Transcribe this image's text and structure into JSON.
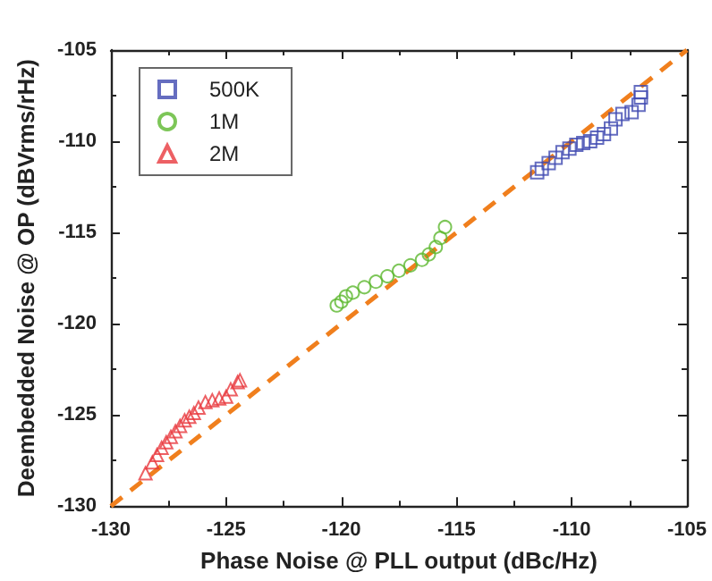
{
  "chart_data": {
    "type": "scatter",
    "xlabel": "Phase Noise @ PLL output (dBc/Hz)",
    "ylabel": "Deembedded Noise @ OP (dBVrms/rHz)",
    "xlim": [
      -130,
      -105
    ],
    "xticks": [
      -130,
      -125,
      -120,
      -115,
      -110,
      -105
    ],
    "ylim": [
      -130,
      -105
    ],
    "yticks": [
      -130,
      -125,
      -120,
      -115,
      -110,
      -105
    ],
    "grid": false,
    "legend": "top left",
    "series": [
      {
        "name": "500K",
        "color": "#3f48b0",
        "marker": "square",
        "x": [
          -111.5,
          -111.3,
          -111.0,
          -110.7,
          -110.4,
          -110.1,
          -109.8,
          -109.5,
          -109.2,
          -108.9,
          -108.6,
          -108.3,
          -108.1,
          -107.8,
          -107.4,
          -107.1,
          -107.0,
          -107.0
        ],
        "values": [
          -111.7,
          -111.5,
          -111.2,
          -110.9,
          -110.6,
          -110.4,
          -110.2,
          -110.1,
          -110.0,
          -109.8,
          -109.6,
          -109.3,
          -108.8,
          -108.5,
          -108.4,
          -108.0,
          -107.6,
          -107.3
        ]
      },
      {
        "name": "1M",
        "color": "#5cb82e",
        "marker": "circle",
        "x": [
          -120.2,
          -120.0,
          -119.8,
          -119.5,
          -119.0,
          -118.5,
          -118.0,
          -117.5,
          -117.0,
          -116.5,
          -116.2,
          -115.9,
          -115.7,
          -115.5
        ],
        "values": [
          -119.0,
          -118.8,
          -118.5,
          -118.3,
          -118.0,
          -117.7,
          -117.4,
          -117.1,
          -116.8,
          -116.5,
          -116.2,
          -115.8,
          -115.3,
          -114.7
        ]
      },
      {
        "name": "2M",
        "color": "#e8383d",
        "marker": "triangle",
        "x": [
          -128.5,
          -128.2,
          -128.0,
          -127.8,
          -127.6,
          -127.4,
          -127.2,
          -127.0,
          -126.8,
          -126.6,
          -126.4,
          -126.2,
          -125.9,
          -125.6,
          -125.3,
          -125.0,
          -124.8,
          -124.5,
          -124.4
        ],
        "values": [
          -128.2,
          -127.6,
          -127.2,
          -126.8,
          -126.5,
          -126.2,
          -125.9,
          -125.6,
          -125.3,
          -125.1,
          -124.9,
          -124.6,
          -124.3,
          -124.2,
          -124.1,
          -124.0,
          -123.6,
          -123.2,
          -123.1
        ]
      },
      {
        "type": "line",
        "color": "#f07f1d",
        "marker": "none",
        "line_style": "dashed",
        "x": [
          -130,
          -105
        ],
        "values": [
          -130,
          -105
        ]
      }
    ]
  }
}
